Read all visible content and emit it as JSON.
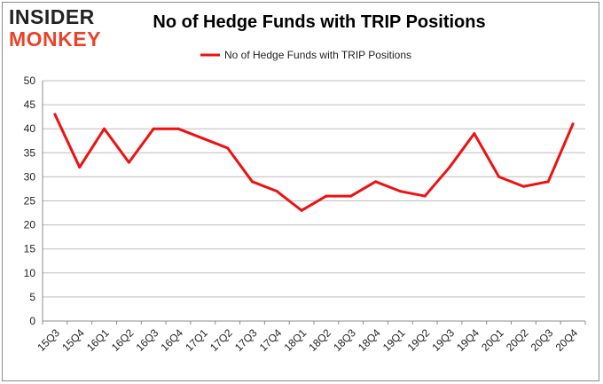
{
  "brand": {
    "line1": "INSIDER",
    "line2": "MONKEY"
  },
  "colors": {
    "series": "#ee1111",
    "grid": "#bdbdbd",
    "brand_red": "#e8432b"
  },
  "chart_data": {
    "type": "line",
    "title": "No of Hedge Funds with TRIP Positions",
    "xlabel": "",
    "ylabel": "",
    "categories": [
      "15Q3",
      "15Q4",
      "16Q1",
      "16Q2",
      "16Q3",
      "16Q4",
      "17Q1",
      "17Q2",
      "17Q3",
      "17Q4",
      "18Q1",
      "18Q2",
      "18Q3",
      "18Q4",
      "19Q1",
      "19Q2",
      "19Q3",
      "19Q4",
      "20Q1",
      "20Q2",
      "20Q3",
      "20Q4"
    ],
    "series": [
      {
        "name": "No of Hedge Funds with TRIP Positions",
        "values": [
          43,
          32,
          40,
          33,
          40,
          40,
          38,
          36,
          29,
          27,
          23,
          26,
          26,
          29,
          27,
          26,
          32,
          39,
          30,
          28,
          29,
          41
        ]
      }
    ],
    "ylim": [
      0,
      50
    ],
    "yticks": [
      0,
      5,
      10,
      15,
      20,
      25,
      30,
      35,
      40,
      45,
      50
    ],
    "grid": true,
    "legend_position": "top-center"
  }
}
